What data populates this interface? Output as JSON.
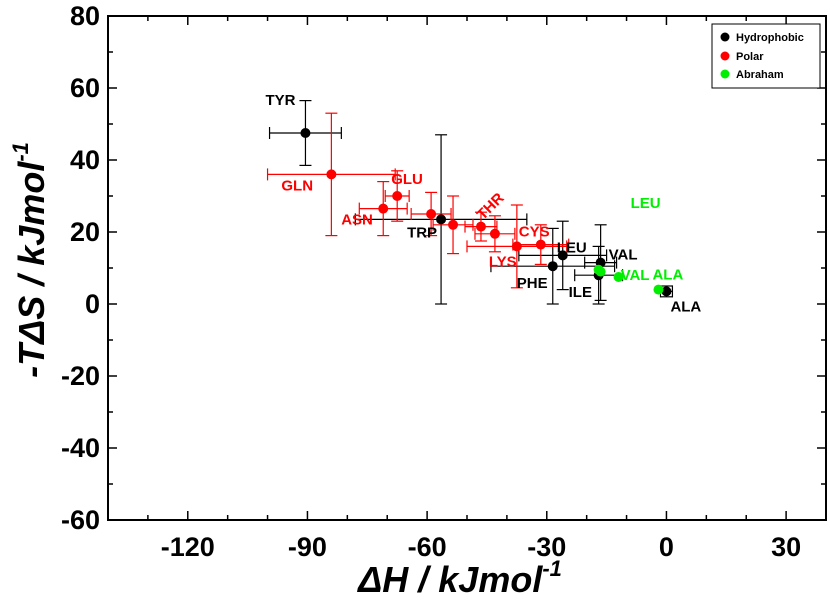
{
  "chart_data": {
    "type": "scatter",
    "title": "",
    "xlabel": "ΔH / kJmol",
    "xlabel_sup": "-1",
    "ylabel": "-TΔS / kJmol",
    "ylabel_sup": "-1",
    "xlim": [
      -140,
      40
    ],
    "ylim": [
      -60,
      80
    ],
    "xticks": [
      -120,
      -90,
      -60,
      -30,
      0,
      30
    ],
    "yticks": [
      -60,
      -40,
      -20,
      0,
      20,
      40,
      60,
      80
    ],
    "legend_position": "top-right",
    "series": [
      {
        "name": "Hydrophobic",
        "color": "#000000",
        "points": [
          {
            "label": "TYR",
            "x": -90.5,
            "y": 47.5,
            "xerr": [
              9,
              9
            ],
            "yerr": [
              9,
              9
            ]
          },
          {
            "label": "TRP",
            "x": -56.5,
            "y": 23.5,
            "xerr": [
              21.5,
              21.5
            ],
            "yerr": [
              23.5,
              23.5
            ]
          },
          {
            "label": "LEU",
            "x": -26,
            "y": 13.5,
            "xerr": [
              11,
              11
            ],
            "yerr": [
              9.5,
              9.5
            ]
          },
          {
            "label": "VAL",
            "x": -16.5,
            "y": 11.5,
            "xerr": [
              4,
              4
            ],
            "yerr": [
              10.5,
              10.5
            ]
          },
          {
            "label": "PHE",
            "x": -28.5,
            "y": 10.5,
            "xerr": [
              15.5,
              15.5
            ],
            "yerr": [
              10.5,
              10.5
            ]
          },
          {
            "label": "ILE",
            "x": -17,
            "y": 8,
            "xerr": [
              6,
              6
            ],
            "yerr": [
              8,
              8
            ]
          },
          {
            "label": "ALA",
            "x": 0,
            "y": 3.5,
            "xerr": [
              1.5,
              1.5
            ],
            "yerr": [
              1.5,
              1.5
            ]
          }
        ]
      },
      {
        "name": "Polar",
        "color": "#ff0000",
        "points": [
          {
            "label": "GLN",
            "x": -84,
            "y": 36,
            "xerr": [
              16,
              16
            ],
            "yerr": [
              17,
              17
            ]
          },
          {
            "label": "GLU",
            "x": -67.5,
            "y": 30,
            "xerr": [
              3,
              3
            ],
            "yerr": [
              7,
              7
            ]
          },
          {
            "label": "ASN",
            "x": -71,
            "y": 26.5,
            "xerr": [
              6,
              6
            ],
            "yerr": [
              7.5,
              7.5
            ]
          },
          {
            "label": "",
            "x": -59,
            "y": 25,
            "xerr": [
              5,
              5
            ],
            "yerr": [
              6,
              6
            ]
          },
          {
            "label": "",
            "x": -53.5,
            "y": 22,
            "xerr": [
              5,
              5
            ],
            "yerr": [
              8,
              8
            ]
          },
          {
            "label": "THR",
            "x": -46.5,
            "y": 21.5,
            "xerr": [
              4,
              4
            ],
            "yerr": [
              4,
              4
            ]
          },
          {
            "label": "",
            "x": -43,
            "y": 19.5,
            "xerr": [
              5,
              5
            ],
            "yerr": [
              5,
              5
            ]
          },
          {
            "label": "LYS",
            "x": -37.5,
            "y": 16,
            "xerr": [
              12.5,
              12.5
            ],
            "yerr": [
              11.5,
              11.5
            ]
          },
          {
            "label": "CYS",
            "x": -31.5,
            "y": 16.5,
            "xerr": [
              7,
              7
            ],
            "yerr": [
              5.5,
              5.5
            ]
          }
        ]
      },
      {
        "name": "Abraham",
        "color": "#00ee00",
        "points": [
          {
            "label": "LEU",
            "x": -17,
            "y": 9.5,
            "xerr": [
              0,
              0
            ],
            "yerr": [
              0,
              0
            ]
          },
          {
            "label": "",
            "x": -16.5,
            "y": 9,
            "xerr": [
              0,
              0
            ],
            "yerr": [
              0,
              0
            ]
          },
          {
            "label": "VAL",
            "x": -12,
            "y": 7.5,
            "xerr": [
              0,
              0
            ],
            "yerr": [
              0,
              0
            ]
          },
          {
            "label": "ALA",
            "x": -2,
            "y": 4,
            "xerr": [
              0,
              0
            ],
            "yerr": [
              0,
              0
            ]
          }
        ]
      }
    ]
  }
}
